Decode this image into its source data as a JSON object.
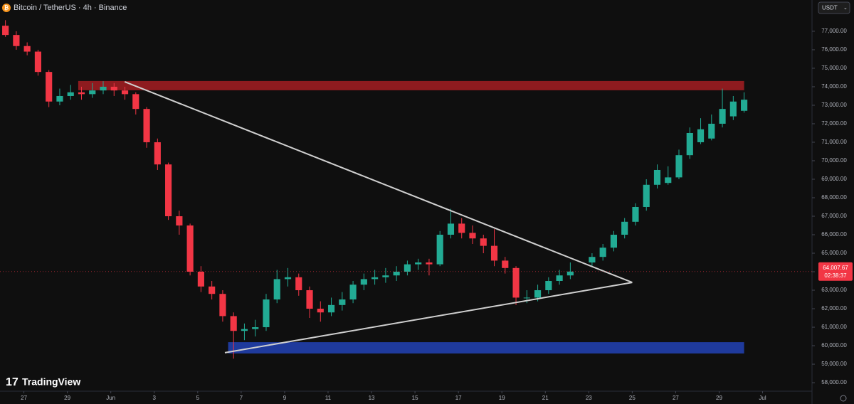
{
  "header": {
    "symbol": "Bitcoin / TetherUS · 4h · Binance",
    "currency": "USDT",
    "brand": "TradingView"
  },
  "chart_data": {
    "type": "candlestick",
    "xlim": [
      -0.5,
      74.25
    ],
    "xticks": [
      {
        "value": 1.7,
        "label": "27"
      },
      {
        "value": 5.7,
        "label": "29"
      },
      {
        "value": 9.7,
        "label": "Jun"
      },
      {
        "value": 13.7,
        "label": "3"
      },
      {
        "value": 17.7,
        "label": "5"
      },
      {
        "value": 21.7,
        "label": "7"
      },
      {
        "value": 25.7,
        "label": "9"
      },
      {
        "value": 29.7,
        "label": "11"
      },
      {
        "value": 33.7,
        "label": "13"
      },
      {
        "value": 37.7,
        "label": "15"
      },
      {
        "value": 41.7,
        "label": "17"
      },
      {
        "value": 45.7,
        "label": "19"
      },
      {
        "value": 49.7,
        "label": "21"
      },
      {
        "value": 53.7,
        "label": "23"
      },
      {
        "value": 57.7,
        "label": "25"
      },
      {
        "value": 61.7,
        "label": "27"
      },
      {
        "value": 65.7,
        "label": "29"
      },
      {
        "value": 69.7,
        "label": "Jul"
      }
    ],
    "ylim": [
      57540,
      78690
    ],
    "yticks": [
      {
        "value": 58000,
        "label": "58,000.00"
      },
      {
        "value": 59000,
        "label": "59,000.00"
      },
      {
        "value": 60000,
        "label": "60,000.00"
      },
      {
        "value": 61000,
        "label": "61,000.00"
      },
      {
        "value": 62000,
        "label": "62,000.00"
      },
      {
        "value": 63000,
        "label": "63,000.00"
      },
      {
        "value": 64000,
        "label": "64,000.00"
      },
      {
        "value": 65000,
        "label": "65,000.00"
      },
      {
        "value": 66000,
        "label": "66,000.00"
      },
      {
        "value": 67000,
        "label": "67,000.00"
      },
      {
        "value": 68000,
        "label": "68,000.00"
      },
      {
        "value": 69000,
        "label": "69,000.00"
      },
      {
        "value": 70000,
        "label": "70,000.00"
      },
      {
        "value": 71000,
        "label": "71,000.00"
      },
      {
        "value": 72000,
        "label": "72,000.00"
      },
      {
        "value": 73000,
        "label": "73,000.00"
      },
      {
        "value": 74000,
        "label": "74,000.00"
      },
      {
        "value": 75000,
        "label": "75,000.00"
      },
      {
        "value": 76000,
        "label": "76,000.00"
      },
      {
        "value": 77000,
        "label": "77,000.00"
      }
    ],
    "up_color": "#22ab94",
    "down_color": "#f23645",
    "series": [
      {
        "x": [
          0,
          1,
          2,
          3,
          4,
          5,
          6,
          7,
          8,
          9,
          10,
          11,
          12,
          13,
          14,
          15,
          16,
          17,
          18,
          19,
          20,
          21,
          22,
          23,
          24,
          25,
          26,
          27,
          28,
          29,
          30,
          31,
          32,
          33,
          34,
          35,
          36,
          37,
          38,
          39,
          40,
          41,
          42,
          43,
          44,
          45,
          46,
          47,
          48,
          49,
          50,
          51,
          52
        ],
        "candles": [
          [
            77300,
            77600,
            76700,
            76800
          ],
          [
            76800,
            77000,
            76000,
            76200
          ],
          [
            76200,
            76400,
            75700,
            75900
          ],
          [
            75900,
            76000,
            74600,
            74800
          ],
          [
            74800,
            74900,
            72900,
            73200
          ],
          [
            73200,
            73900,
            73000,
            73500
          ],
          [
            73500,
            74100,
            73300,
            73700
          ],
          [
            73700,
            74000,
            73300,
            73600
          ],
          [
            73600,
            74200,
            73400,
            73800
          ],
          [
            73800,
            74300,
            73600,
            74000
          ],
          [
            74000,
            74200,
            73500,
            73800
          ],
          [
            73800,
            74000,
            73300,
            73600
          ],
          [
            73600,
            73700,
            72500,
            72800
          ],
          [
            72800,
            72900,
            70700,
            71000
          ],
          [
            71000,
            71200,
            69500,
            69800
          ],
          [
            69800,
            69900,
            66800,
            67000
          ],
          [
            67000,
            67300,
            66000,
            66500
          ],
          [
            66500,
            66600,
            63800,
            64000
          ],
          [
            64000,
            64300,
            62900,
            63200
          ],
          [
            63200,
            63500,
            62500,
            62800
          ],
          [
            62800,
            63000,
            61300,
            61600
          ],
          [
            61600,
            61800,
            59300,
            60800
          ],
          [
            60800,
            61200,
            60300,
            60900
          ],
          [
            60900,
            61400,
            60500,
            61000
          ],
          [
            61000,
            62800,
            60800,
            62500
          ],
          [
            62500,
            64100,
            62300,
            63600
          ],
          [
            63600,
            64200,
            63200,
            63700
          ],
          [
            63700,
            63900,
            62700,
            63000
          ],
          [
            63000,
            63200,
            61500,
            62000
          ],
          [
            62000,
            62400,
            61300,
            61800
          ],
          [
            61800,
            62600,
            61600,
            62200
          ],
          [
            62200,
            62900,
            61900,
            62500
          ],
          [
            62500,
            63500,
            62300,
            63300
          ],
          [
            63300,
            63900,
            63000,
            63600
          ],
          [
            63600,
            64100,
            63300,
            63700
          ],
          [
            63700,
            64200,
            63400,
            63800
          ],
          [
            63800,
            64300,
            63500,
            64000
          ],
          [
            64000,
            64600,
            63800,
            64400
          ],
          [
            64400,
            64700,
            64100,
            64500
          ],
          [
            64500,
            64700,
            63800,
            64400
          ],
          [
            64400,
            66200,
            64300,
            66000
          ],
          [
            66000,
            67400,
            65800,
            66600
          ],
          [
            66600,
            66900,
            65800,
            66100
          ],
          [
            66100,
            66500,
            65500,
            65800
          ],
          [
            65800,
            66000,
            65000,
            65400
          ],
          [
            65400,
            66300,
            64300,
            64600
          ],
          [
            64600,
            64800,
            63900,
            64200
          ],
          [
            64200,
            64300,
            62200,
            62600
          ],
          [
            62600,
            63000,
            62300,
            62600
          ],
          [
            62600,
            63300,
            62400,
            63000
          ],
          [
            63000,
            63700,
            62800,
            63500
          ],
          [
            63500,
            64100,
            63300,
            63800
          ],
          [
            63800,
            64500,
            63600,
            64007.67
          ]
        ]
      },
      {
        "x": [
          54,
          55,
          56,
          57,
          58,
          59,
          60,
          61,
          62,
          63,
          64,
          65,
          66,
          67,
          68
        ],
        "candles": [
          [
            64500,
            65000,
            64300,
            64800
          ],
          [
            64800,
            65500,
            64600,
            65300
          ],
          [
            65300,
            66200,
            65100,
            66000
          ],
          [
            66000,
            66900,
            65800,
            66700
          ],
          [
            66700,
            67700,
            66500,
            67500
          ],
          [
            67500,
            69000,
            67300,
            68700
          ],
          [
            68700,
            69800,
            68500,
            69500
          ],
          [
            68800,
            69700,
            68700,
            69100
          ],
          [
            69100,
            70600,
            69000,
            70300
          ],
          [
            70300,
            71800,
            70100,
            71500
          ],
          [
            71000,
            72300,
            70900,
            71700
          ],
          [
            71200,
            72500,
            71100,
            72000
          ],
          [
            72000,
            73900,
            71800,
            72800
          ],
          [
            72400,
            73500,
            72200,
            73200
          ],
          [
            72700,
            73700,
            72600,
            73300
          ]
        ]
      }
    ],
    "zones": [
      {
        "x": [
          6.7,
          68.0
        ],
        "y": [
          73810,
          74310
        ],
        "color": "#8e1b1f"
      },
      {
        "x": [
          20.5,
          68.0
        ],
        "y": [
          59580,
          60190
        ],
        "color": "#1f3a9c"
      }
    ],
    "trendlines": [
      {
        "x": [
          10.98,
          57.7
        ],
        "y": [
          74270,
          63420
        ],
        "color": "#cfcfcf"
      },
      {
        "x": [
          20.2,
          57.7
        ],
        "y": [
          59620,
          63420
        ],
        "color": "#cfcfcf"
      }
    ],
    "last_price": {
      "value": 64007.67,
      "label": "64,007.67"
    },
    "countdown": "02:38:37"
  }
}
